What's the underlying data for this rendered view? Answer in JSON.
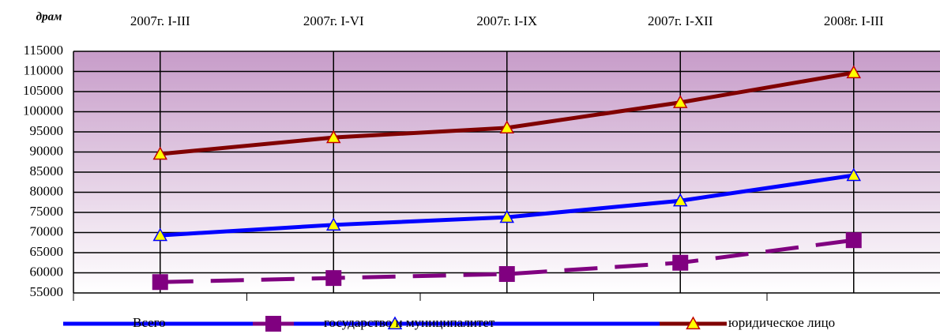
{
  "chart_data": {
    "type": "line",
    "y_label": "драм",
    "categories": [
      "2007г. I-III",
      "2007г. I-VI",
      "2007г. I-IX",
      "2007г. I-XII",
      "2008г. I-III"
    ],
    "series": [
      {
        "name": "Всего",
        "color": "#0000ff",
        "values": [
          69300,
          71900,
          73800,
          77900,
          84200
        ]
      },
      {
        "name": "государство и муниципалитет",
        "color": "#800080",
        "values": [
          57700,
          58700,
          59700,
          62500,
          68100
        ]
      },
      {
        "name": "юридическое лицо",
        "color": "#800000",
        "values": [
          89500,
          93600,
          96000,
          102300,
          109700
        ]
      }
    ],
    "ylim": [
      55000,
      115000
    ],
    "yticks": [
      55000,
      60000,
      65000,
      70000,
      75000,
      80000,
      85000,
      90000,
      95000,
      100000,
      105000,
      110000,
      115000
    ],
    "grid": true,
    "legend": "bottom"
  }
}
